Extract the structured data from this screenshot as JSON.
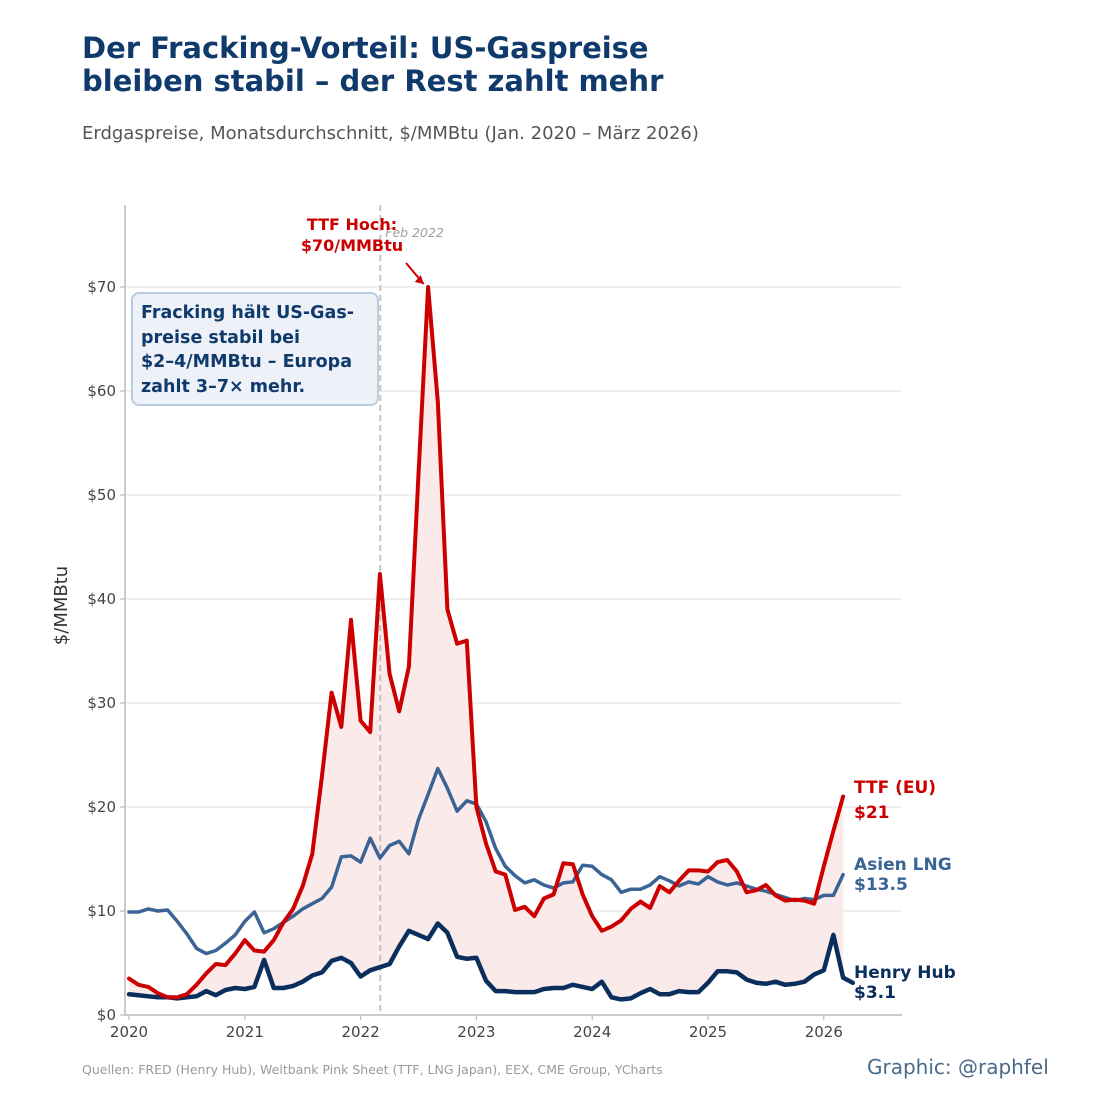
{
  "header": {
    "title_line1": "Der Fracking-Vorteil: US-Gaspreise",
    "title_line2": "bleiben stabil – der Rest zahlt mehr",
    "subtitle": "Erdgaspreise, Monatsdurchschnitt, $/MMBtu (Jan. 2020 – März 2026)"
  },
  "footer": {
    "sources": "Quellen: FRED (Henry Hub), Weltbank Pink Sheet (TTF, LNG Japan), EEX, CME Group, YCharts",
    "credit": "Graphic: @raphfel"
  },
  "annotation": {
    "box_lines": [
      "Fracking hält US-Gas-",
      "preise stabil bei",
      "$2–4/MMBtu – Europa",
      "zahlt 3–7× mehr."
    ],
    "peak_lines": [
      "TTF Hoch:",
      "$70/MMBtu"
    ],
    "peak_point": [
      2022.58,
      70
    ],
    "vline_label": "Feb 2022",
    "vline_x": 2022.17
  },
  "colors": {
    "ttf": "#cc0000",
    "lng": "#3a6496",
    "hh": "#0a2f5c",
    "fill": "#fbeaea",
    "grid": "#e6e6e6",
    "axis": "#bbbbbb",
    "tick_text": "#444444"
  },
  "chart_data": {
    "type": "line",
    "ylabel": "$/MMBtu",
    "xlim": [
      2019.95,
      2026.68
    ],
    "ylim": [
      0,
      78
    ],
    "x_ticks": [
      2020,
      2021,
      2022,
      2023,
      2024,
      2025,
      2026
    ],
    "y_ticks": [
      0,
      10,
      20,
      30,
      40,
      50,
      60,
      70
    ],
    "y_tick_labels": [
      "$0",
      "$10",
      "$20",
      "$30",
      "$40",
      "$50",
      "$60",
      "$70"
    ],
    "series": [
      {
        "key": "ttf",
        "name": "TTF (EU)",
        "end_label": "$21",
        "points": [
          [
            2020.0,
            3.5
          ],
          [
            2020.083,
            2.9
          ],
          [
            2020.167,
            2.7
          ],
          [
            2020.25,
            2.1
          ],
          [
            2020.333,
            1.7
          ],
          [
            2020.417,
            1.7
          ],
          [
            2020.5,
            2.0
          ],
          [
            2020.583,
            2.9
          ],
          [
            2020.667,
            4.0
          ],
          [
            2020.75,
            4.9
          ],
          [
            2020.833,
            4.8
          ],
          [
            2020.917,
            5.9
          ],
          [
            2021.0,
            7.2
          ],
          [
            2021.083,
            6.2
          ],
          [
            2021.167,
            6.1
          ],
          [
            2021.25,
            7.2
          ],
          [
            2021.333,
            8.9
          ],
          [
            2021.417,
            10.2
          ],
          [
            2021.5,
            12.4
          ],
          [
            2021.583,
            15.5
          ],
          [
            2021.667,
            23.0
          ],
          [
            2021.75,
            31.0
          ],
          [
            2021.833,
            27.7
          ],
          [
            2021.917,
            38.0
          ],
          [
            2022.0,
            28.3
          ],
          [
            2022.083,
            27.2
          ],
          [
            2022.167,
            42.4
          ],
          [
            2022.25,
            32.8
          ],
          [
            2022.333,
            29.2
          ],
          [
            2022.417,
            33.5
          ],
          [
            2022.5,
            52.0
          ],
          [
            2022.583,
            70.0
          ],
          [
            2022.667,
            59.0
          ],
          [
            2022.75,
            39.0
          ],
          [
            2022.833,
            35.7
          ],
          [
            2022.917,
            36.0
          ],
          [
            2023.0,
            20.0
          ],
          [
            2023.083,
            16.5
          ],
          [
            2023.167,
            13.8
          ],
          [
            2023.25,
            13.5
          ],
          [
            2023.333,
            10.1
          ],
          [
            2023.417,
            10.4
          ],
          [
            2023.5,
            9.5
          ],
          [
            2023.583,
            11.2
          ],
          [
            2023.667,
            11.6
          ],
          [
            2023.75,
            14.6
          ],
          [
            2023.833,
            14.5
          ],
          [
            2023.917,
            11.6
          ],
          [
            2024.0,
            9.5
          ],
          [
            2024.083,
            8.1
          ],
          [
            2024.167,
            8.5
          ],
          [
            2024.25,
            9.1
          ],
          [
            2024.333,
            10.2
          ],
          [
            2024.417,
            10.9
          ],
          [
            2024.5,
            10.3
          ],
          [
            2024.583,
            12.4
          ],
          [
            2024.667,
            11.8
          ],
          [
            2024.75,
            12.9
          ],
          [
            2024.833,
            13.9
          ],
          [
            2024.917,
            13.9
          ],
          [
            2025.0,
            13.8
          ],
          [
            2025.083,
            14.7
          ],
          [
            2025.167,
            14.9
          ],
          [
            2025.25,
            13.8
          ],
          [
            2025.333,
            11.8
          ],
          [
            2025.417,
            12.0
          ],
          [
            2025.5,
            12.5
          ],
          [
            2025.583,
            11.5
          ],
          [
            2025.667,
            11.0
          ],
          [
            2025.75,
            11.1
          ],
          [
            2025.833,
            11.0
          ],
          [
            2025.917,
            10.7
          ],
          [
            2026.0,
            14.3
          ],
          [
            2026.083,
            17.7
          ],
          [
            2026.167,
            21.0
          ]
        ]
      },
      {
        "key": "lng",
        "name": "Asien LNG",
        "end_label": "$13.5",
        "points": [
          [
            2020.0,
            9.9
          ],
          [
            2020.083,
            9.9
          ],
          [
            2020.167,
            10.2
          ],
          [
            2020.25,
            10.0
          ],
          [
            2020.333,
            10.1
          ],
          [
            2020.417,
            9.0
          ],
          [
            2020.5,
            7.8
          ],
          [
            2020.583,
            6.4
          ],
          [
            2020.667,
            5.9
          ],
          [
            2020.75,
            6.2
          ],
          [
            2020.833,
            6.9
          ],
          [
            2020.917,
            7.7
          ],
          [
            2021.0,
            9.0
          ],
          [
            2021.083,
            9.9
          ],
          [
            2021.167,
            7.9
          ],
          [
            2021.25,
            8.3
          ],
          [
            2021.333,
            8.9
          ],
          [
            2021.417,
            9.5
          ],
          [
            2021.5,
            10.2
          ],
          [
            2021.583,
            10.7
          ],
          [
            2021.667,
            11.2
          ],
          [
            2021.75,
            12.3
          ],
          [
            2021.833,
            15.2
          ],
          [
            2021.917,
            15.3
          ],
          [
            2022.0,
            14.7
          ],
          [
            2022.083,
            17.0
          ],
          [
            2022.167,
            15.1
          ],
          [
            2022.25,
            16.3
          ],
          [
            2022.333,
            16.7
          ],
          [
            2022.417,
            15.5
          ],
          [
            2022.5,
            18.8
          ],
          [
            2022.583,
            21.2
          ],
          [
            2022.667,
            23.7
          ],
          [
            2022.75,
            21.8
          ],
          [
            2022.833,
            19.6
          ],
          [
            2022.917,
            20.6
          ],
          [
            2023.0,
            20.3
          ],
          [
            2023.083,
            18.6
          ],
          [
            2023.167,
            16.0
          ],
          [
            2023.25,
            14.3
          ],
          [
            2023.333,
            13.4
          ],
          [
            2023.417,
            12.7
          ],
          [
            2023.5,
            13.0
          ],
          [
            2023.583,
            12.5
          ],
          [
            2023.667,
            12.2
          ],
          [
            2023.75,
            12.7
          ],
          [
            2023.833,
            12.8
          ],
          [
            2023.917,
            14.4
          ],
          [
            2024.0,
            14.3
          ],
          [
            2024.083,
            13.5
          ],
          [
            2024.167,
            13.0
          ],
          [
            2024.25,
            11.8
          ],
          [
            2024.333,
            12.1
          ],
          [
            2024.417,
            12.1
          ],
          [
            2024.5,
            12.5
          ],
          [
            2024.583,
            13.3
          ],
          [
            2024.667,
            12.9
          ],
          [
            2024.75,
            12.4
          ],
          [
            2024.833,
            12.8
          ],
          [
            2024.917,
            12.6
          ],
          [
            2025.0,
            13.3
          ],
          [
            2025.083,
            12.8
          ],
          [
            2025.167,
            12.5
          ],
          [
            2025.25,
            12.7
          ],
          [
            2025.333,
            12.4
          ],
          [
            2025.417,
            12.1
          ],
          [
            2025.5,
            11.9
          ],
          [
            2025.583,
            11.6
          ],
          [
            2025.667,
            11.3
          ],
          [
            2025.75,
            11.0
          ],
          [
            2025.833,
            11.2
          ],
          [
            2025.917,
            11.1
          ],
          [
            2026.0,
            11.5
          ],
          [
            2026.083,
            11.5
          ],
          [
            2026.167,
            13.5
          ]
        ]
      },
      {
        "key": "hh",
        "name": "Henry Hub",
        "end_label": "$3.1",
        "points": [
          [
            2020.0,
            2.0
          ],
          [
            2020.083,
            1.9
          ],
          [
            2020.167,
            1.8
          ],
          [
            2020.25,
            1.7
          ],
          [
            2020.333,
            1.7
          ],
          [
            2020.417,
            1.6
          ],
          [
            2020.5,
            1.7
          ],
          [
            2020.583,
            1.8
          ],
          [
            2020.667,
            2.3
          ],
          [
            2020.75,
            1.9
          ],
          [
            2020.833,
            2.4
          ],
          [
            2020.917,
            2.6
          ],
          [
            2021.0,
            2.5
          ],
          [
            2021.083,
            2.7
          ],
          [
            2021.167,
            5.3
          ],
          [
            2021.25,
            2.6
          ],
          [
            2021.333,
            2.6
          ],
          [
            2021.417,
            2.8
          ],
          [
            2021.5,
            3.2
          ],
          [
            2021.583,
            3.8
          ],
          [
            2021.667,
            4.1
          ],
          [
            2021.75,
            5.2
          ],
          [
            2021.833,
            5.5
          ],
          [
            2021.917,
            5.0
          ],
          [
            2022.0,
            3.7
          ],
          [
            2022.083,
            4.3
          ],
          [
            2022.167,
            4.6
          ],
          [
            2022.25,
            4.9
          ],
          [
            2022.333,
            6.6
          ],
          [
            2022.417,
            8.1
          ],
          [
            2022.5,
            7.7
          ],
          [
            2022.583,
            7.3
          ],
          [
            2022.667,
            8.8
          ],
          [
            2022.75,
            7.9
          ],
          [
            2022.833,
            5.6
          ],
          [
            2022.917,
            5.4
          ],
          [
            2023.0,
            5.5
          ],
          [
            2023.083,
            3.3
          ],
          [
            2023.167,
            2.3
          ],
          [
            2023.25,
            2.3
          ],
          [
            2023.333,
            2.2
          ],
          [
            2023.417,
            2.2
          ],
          [
            2023.5,
            2.2
          ],
          [
            2023.583,
            2.5
          ],
          [
            2023.667,
            2.6
          ],
          [
            2023.75,
            2.6
          ],
          [
            2023.833,
            2.9
          ],
          [
            2023.917,
            2.7
          ],
          [
            2024.0,
            2.5
          ],
          [
            2024.083,
            3.2
          ],
          [
            2024.167,
            1.7
          ],
          [
            2024.25,
            1.5
          ],
          [
            2024.333,
            1.6
          ],
          [
            2024.417,
            2.1
          ],
          [
            2024.5,
            2.5
          ],
          [
            2024.583,
            2.0
          ],
          [
            2024.667,
            2.0
          ],
          [
            2024.75,
            2.3
          ],
          [
            2024.833,
            2.2
          ],
          [
            2024.917,
            2.2
          ],
          [
            2025.0,
            3.1
          ],
          [
            2025.083,
            4.2
          ],
          [
            2025.167,
            4.2
          ],
          [
            2025.25,
            4.1
          ],
          [
            2025.333,
            3.4
          ],
          [
            2025.417,
            3.1
          ],
          [
            2025.5,
            3.0
          ],
          [
            2025.583,
            3.2
          ],
          [
            2025.667,
            2.9
          ],
          [
            2025.75,
            3.0
          ],
          [
            2025.833,
            3.2
          ],
          [
            2025.917,
            3.9
          ],
          [
            2026.0,
            4.3
          ],
          [
            2026.083,
            7.7
          ],
          [
            2026.167,
            3.6
          ],
          [
            2026.25,
            3.1
          ]
        ]
      }
    ]
  }
}
